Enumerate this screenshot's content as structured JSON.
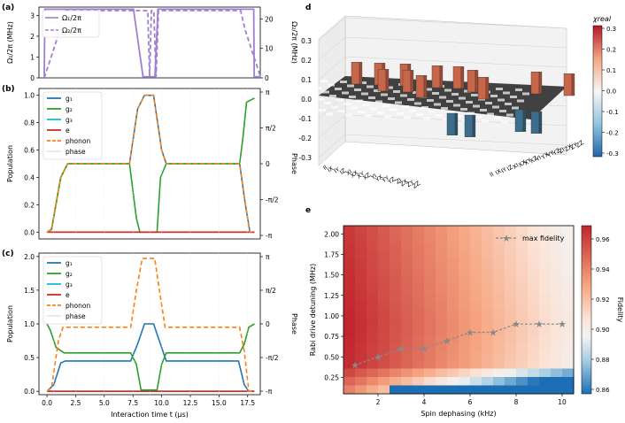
{
  "panel_labels": {
    "a": "(a)",
    "b": "(b)",
    "c": "(c)",
    "d": "d",
    "e": "e"
  },
  "chart_data": [
    {
      "id": "a",
      "type": "line",
      "x": [
        0,
        18.2
      ],
      "ylabel_left": "Ω₁/2π (MHz)",
      "ylabel_right": "Ω₂/2π (MHz)",
      "ylim_left": [
        0,
        3.4
      ],
      "ylim_right": [
        0,
        24
      ],
      "yticks_left": [
        "0",
        "1",
        "2",
        "3"
      ],
      "yticks_right": [
        "0",
        "10",
        "20"
      ],
      "series": [
        {
          "name": "Ω₁/2π",
          "style": "solid",
          "color": "#a07fd0",
          "points": [
            [
              0,
              0.05
            ],
            [
              0.05,
              3.3
            ],
            [
              7.5,
              3.3
            ],
            [
              8.3,
              0.05
            ],
            [
              9.3,
              0.05
            ],
            [
              9.55,
              3.3
            ],
            [
              17.6,
              3.3
            ],
            [
              17.65,
              0.05
            ],
            [
              18.2,
              0.05
            ]
          ]
        },
        {
          "name": "Ω₂/2π",
          "style": "dashed",
          "color": "#a07fd0",
          "points": [
            [
              0,
              0
            ],
            [
              1.3,
              16
            ],
            [
              1.7,
              22.8
            ],
            [
              8.7,
              22.8
            ],
            [
              8.85,
              0.3
            ],
            [
              9.0,
              22.8
            ],
            [
              9.2,
              22.8
            ],
            [
              9.4,
              0.3
            ],
            [
              9.6,
              22.8
            ],
            [
              16.5,
              22.8
            ],
            [
              16.9,
              16
            ],
            [
              18.2,
              0
            ]
          ]
        }
      ]
    },
    {
      "id": "b",
      "type": "line",
      "ylabel_left": "Population",
      "ylabel_right": "Phase",
      "ylim": [
        -0.05,
        1.05
      ],
      "yticks_left": [
        "0.0",
        "0.2",
        "0.4",
        "0.6",
        "0.8",
        "1.0"
      ],
      "yticks_right": [
        "-π",
        "-π/2",
        "0",
        "π/2",
        "π"
      ],
      "series": [
        {
          "name": "g₁",
          "color": "#1f77b4",
          "style": "solid",
          "points": [
            [
              0,
              0
            ],
            [
              0.4,
              0.02
            ],
            [
              1.2,
              0.4
            ],
            [
              1.8,
              0.5
            ],
            [
              7.2,
              0.5
            ],
            [
              7.9,
              0.9
            ],
            [
              8.5,
              1.0
            ],
            [
              9.3,
              1.0
            ],
            [
              10.0,
              0.6
            ],
            [
              10.4,
              0.5
            ],
            [
              16.8,
              0.5
            ],
            [
              17.3,
              0.2
            ],
            [
              17.7,
              0
            ],
            [
              18.1,
              0
            ]
          ]
        },
        {
          "name": "g₂",
          "color": "#2ca02c",
          "style": "solid",
          "points": [
            [
              0,
              0
            ],
            [
              0.4,
              0.02
            ],
            [
              1.2,
              0.4
            ],
            [
              1.8,
              0.5
            ],
            [
              7.2,
              0.5
            ],
            [
              7.8,
              0.1
            ],
            [
              8.1,
              0
            ],
            [
              9.6,
              0
            ],
            [
              9.9,
              0.4
            ],
            [
              10.4,
              0.5
            ],
            [
              16.8,
              0.5
            ],
            [
              17.1,
              0.7
            ],
            [
              17.4,
              0.95
            ],
            [
              18.1,
              0.98
            ]
          ]
        },
        {
          "name": "g₃",
          "color": "#17becf",
          "style": "solid",
          "points": [
            [
              0,
              0
            ],
            [
              18.1,
              0
            ]
          ]
        },
        {
          "name": "e",
          "color": "#d62728",
          "style": "solid",
          "points": [
            [
              0,
              0
            ],
            [
              18.1,
              0
            ]
          ]
        },
        {
          "name": "phonon",
          "color": "#ff7f0e",
          "style": "dashed",
          "points": [
            [
              0,
              0
            ],
            [
              0.4,
              0.02
            ],
            [
              1.2,
              0.4
            ],
            [
              1.8,
              0.5
            ],
            [
              7.2,
              0.5
            ],
            [
              7.9,
              0.9
            ],
            [
              8.5,
              1.0
            ],
            [
              9.3,
              1.0
            ],
            [
              10.0,
              0.6
            ],
            [
              10.4,
              0.5
            ],
            [
              16.8,
              0.5
            ],
            [
              17.3,
              0.2
            ],
            [
              17.7,
              0
            ],
            [
              18.1,
              0
            ]
          ]
        },
        {
          "name": "phase",
          "color": "#cccccc",
          "style": "thin",
          "points": []
        }
      ]
    },
    {
      "id": "c",
      "type": "line",
      "xlabel": "Interaction time t (μs)",
      "ylabel_left": "Population",
      "ylabel_right": "Phase",
      "ylim": [
        -0.05,
        2.05
      ],
      "xticks": [
        "0.0",
        "2.5",
        "5.0",
        "7.5",
        "10.0",
        "12.5",
        "15.0",
        "17.5"
      ],
      "yticks_left": [
        "0.0",
        "0.5",
        "1.0",
        "1.5",
        "2.0"
      ],
      "yticks_right": [
        "-π",
        "-π/2",
        "0",
        "π/2",
        "π"
      ],
      "series": [
        {
          "name": "g₁",
          "color": "#1f77b4",
          "style": "solid",
          "points": [
            [
              0,
              0
            ],
            [
              0.6,
              0.1
            ],
            [
              1.2,
              0.42
            ],
            [
              1.6,
              0.45
            ],
            [
              7.3,
              0.45
            ],
            [
              7.9,
              0.7
            ],
            [
              8.5,
              1.0
            ],
            [
              9.3,
              1.0
            ],
            [
              9.9,
              0.7
            ],
            [
              10.4,
              0.45
            ],
            [
              16.7,
              0.45
            ],
            [
              17.2,
              0.1
            ],
            [
              17.6,
              0
            ],
            [
              18.1,
              0
            ]
          ]
        },
        {
          "name": "g₂",
          "color": "#2ca02c",
          "style": "solid",
          "points": [
            [
              0,
              1.0
            ],
            [
              0.3,
              0.9
            ],
            [
              0.8,
              0.65
            ],
            [
              1.5,
              0.57
            ],
            [
              7.3,
              0.57
            ],
            [
              7.8,
              0.4
            ],
            [
              8.2,
              0.02
            ],
            [
              9.6,
              0.02
            ],
            [
              10.0,
              0.4
            ],
            [
              10.4,
              0.57
            ],
            [
              16.8,
              0.57
            ],
            [
              17.2,
              0.7
            ],
            [
              17.6,
              0.95
            ],
            [
              18.1,
              1.0
            ]
          ]
        },
        {
          "name": "g₃",
          "color": "#17becf",
          "style": "solid",
          "points": [
            [
              0,
              0
            ],
            [
              18.1,
              0
            ]
          ]
        },
        {
          "name": "e",
          "color": "#d62728",
          "style": "solid",
          "points": [
            [
              0,
              0
            ],
            [
              18.1,
              0
            ]
          ]
        },
        {
          "name": "phonon",
          "color": "#ff7f0e",
          "style": "dashed",
          "points": [
            [
              0,
              0
            ],
            [
              0.4,
              0.05
            ],
            [
              1.0,
              0.75
            ],
            [
              1.4,
              0.95
            ],
            [
              7.3,
              0.95
            ],
            [
              7.8,
              1.5
            ],
            [
              8.3,
              1.97
            ],
            [
              9.4,
              1.97
            ],
            [
              9.8,
              1.5
            ],
            [
              10.3,
              0.95
            ],
            [
              16.8,
              0.95
            ],
            [
              17.2,
              0.6
            ],
            [
              17.6,
              0
            ],
            [
              18.1,
              0
            ]
          ]
        },
        {
          "name": "phase",
          "color": "#cccccc",
          "style": "thin",
          "points": []
        }
      ]
    },
    {
      "id": "d",
      "type": "bar3d",
      "zlabel": "χreal",
      "zticks": [
        "0.3",
        "0.2",
        "0.1",
        "0.0",
        "-0.1",
        "-0.2",
        "-0.3"
      ],
      "colorbar_ticks": [
        "0.3",
        "0.2",
        "0.1",
        "0.0",
        "-0.1",
        "-0.2",
        "-0.3"
      ],
      "colorbar_label": "χreal",
      "axis_labels": [
        "II",
        "IX",
        "IY",
        "IZ",
        "XI",
        "XX",
        "XY",
        "XZ",
        "YI",
        "YX",
        "YY",
        "YZ",
        "ZI",
        "ZX",
        "ZY",
        "ZZ"
      ],
      "bars": [
        {
          "value": 0.25
        },
        {
          "value": 0.25
        },
        {
          "value": 0.25
        },
        {
          "value": 0.25
        },
        {
          "value": 0.25
        },
        {
          "value": 0.25
        },
        {
          "value": 0.25
        },
        {
          "value": 0.25
        },
        {
          "value": 0.25
        },
        {
          "value": 0.25
        },
        {
          "value": 0.25
        },
        {
          "value": 0.25
        },
        {
          "value": -0.25
        },
        {
          "value": -0.25
        },
        {
          "value": -0.25
        },
        {
          "value": -0.25
        }
      ]
    },
    {
      "id": "e",
      "type": "heatmap",
      "xlabel": "Spin dephasing (kHz)",
      "ylabel": "Rabi drive detuning (MHz)",
      "colorbar_label": "Fidelity",
      "xticks": [
        "2",
        "4",
        "6",
        "8",
        "10"
      ],
      "yticks": [
        "0.25",
        "0.50",
        "0.75",
        "1.00",
        "1.25",
        "1.50",
        "1.75",
        "2.00"
      ],
      "colorbar_ticks": [
        "0.96",
        "0.94",
        "0.92",
        "0.90",
        "0.88",
        "0.86"
      ],
      "legend": "max fidelity",
      "max_fidelity": {
        "x": [
          1,
          2,
          3,
          4,
          5,
          6,
          7,
          8,
          9,
          10
        ],
        "y": [
          0.4,
          0.5,
          0.6,
          0.6,
          0.7,
          0.8,
          0.8,
          0.9,
          0.9,
          0.9
        ]
      }
    }
  ]
}
